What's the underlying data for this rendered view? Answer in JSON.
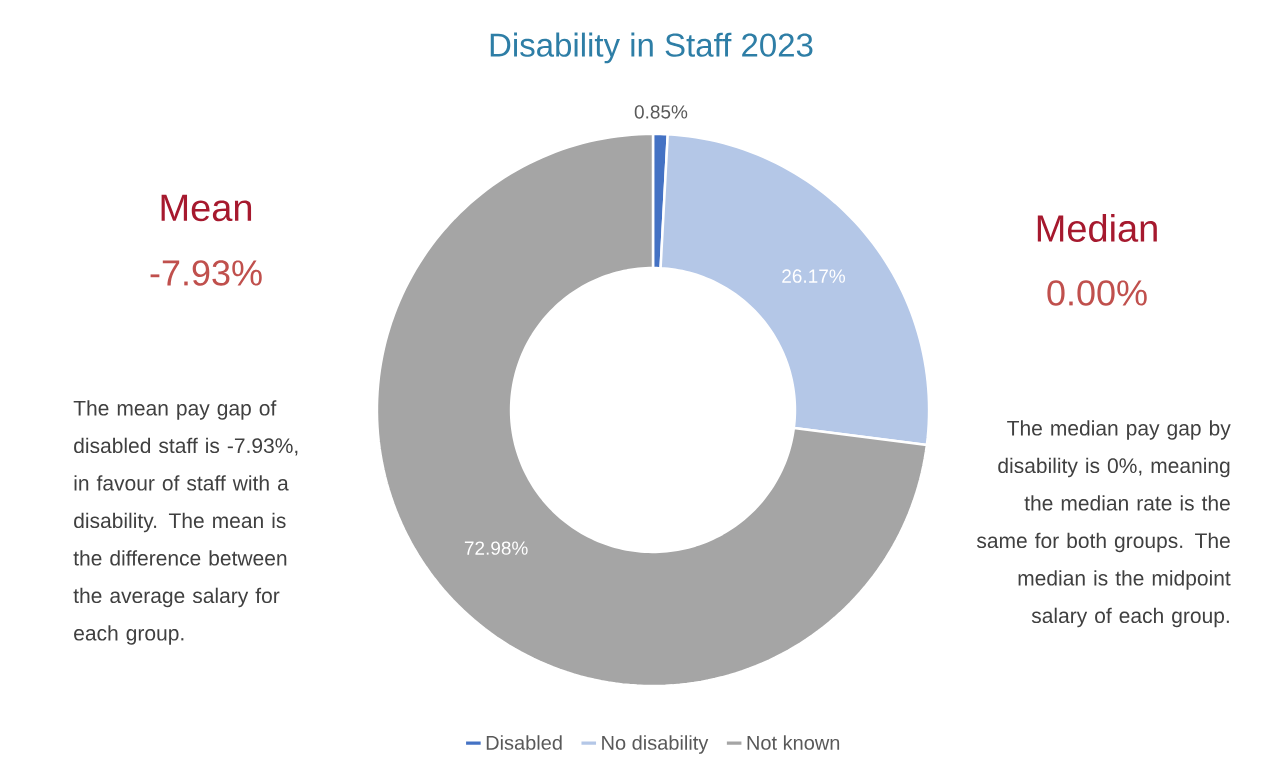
{
  "chart_data": {
    "type": "donut",
    "title": "Disability in Staff 2023",
    "categories": [
      "Disabled",
      "No disability",
      "Not known"
    ],
    "values": [
      0.85,
      26.17,
      72.98
    ],
    "value_labels": [
      "0.85%",
      "26.17%",
      "72.98%"
    ],
    "colors": [
      "#4472c4",
      "#b4c7e7",
      "#a5a5a5"
    ],
    "legend": "bottom",
    "annotations": [
      "Mean",
      "-7.93%",
      "The mean pay gap of disabled staff is -7.93%, in favour of staff with a disability. The mean is the difference between the average salary for each group.",
      "Median",
      "0.00%",
      "The median pay gap by disability is 0%, meaning the median rate is the same for both groups. The median is the midpoint salary of each group."
    ]
  }
}
